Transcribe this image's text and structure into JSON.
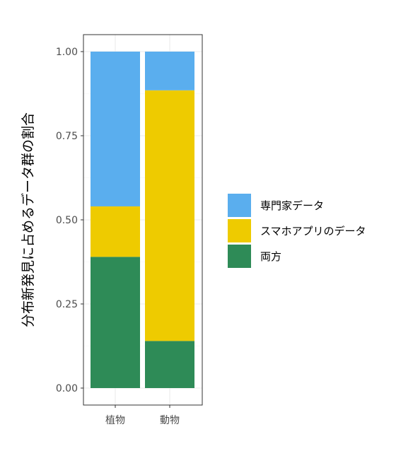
{
  "chart_data": {
    "type": "bar",
    "stacked": true,
    "categories": [
      "植物",
      "動物"
    ],
    "series": [
      {
        "name": "両方",
        "color": "#2e8b57",
        "values": [
          0.39,
          0.14
        ]
      },
      {
        "name": "スマホアプリのデータ",
        "color": "#eecb00",
        "values": [
          0.15,
          0.745
        ]
      },
      {
        "name": "専門家データ",
        "color": "#5aaeee",
        "values": [
          0.46,
          0.115
        ]
      }
    ],
    "xlabel": "",
    "ylabel": "分布新発見に占めるデータ群の割合",
    "ylim": [
      0,
      1
    ],
    "yticks": [
      0.0,
      0.25,
      0.5,
      0.75,
      1.0
    ],
    "ytick_labels": [
      "0.00",
      "0.25",
      "0.50",
      "0.75",
      "1.00"
    ],
    "grid": true,
    "legend_position": "right",
    "legend_order": [
      "専門家データ",
      "スマホアプリのデータ",
      "両方"
    ]
  }
}
